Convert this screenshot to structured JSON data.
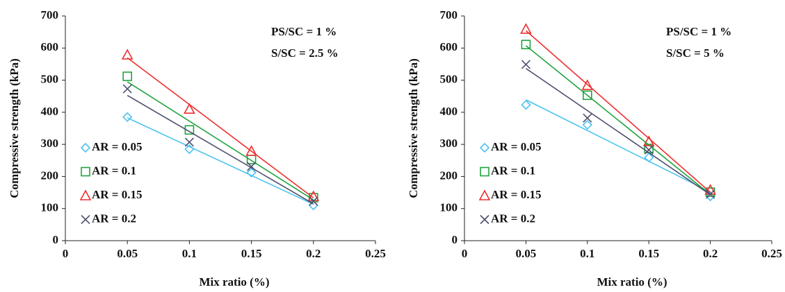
{
  "chart_data": [
    {
      "type": "scatter",
      "xlabel": "Mix ratio (%)",
      "ylabel": "Compressive strength (kPa)",
      "annotations": [
        "PS/SC = 1 %",
        "S/SC = 2.5 %"
      ],
      "x": [
        0.05,
        0.1,
        0.15,
        0.2
      ],
      "series": [
        {
          "name": "AR = 0.05",
          "color": "#4cc3ee",
          "marker": "diamond",
          "values": [
            385,
            285,
            212,
            110
          ]
        },
        {
          "name": "AR = 0.1",
          "color": "#1fa33f",
          "marker": "square",
          "values": [
            512,
            345,
            253,
            134
          ]
        },
        {
          "name": "AR = 0.15",
          "color": "#ee2e2e",
          "marker": "triangle",
          "values": [
            579,
            410,
            279,
            138
          ]
        },
        {
          "name": "AR = 0.2",
          "color": "#4d4f6e",
          "marker": "x",
          "values": [
            473,
            307,
            231,
            123
          ]
        }
      ],
      "xlim": [
        0,
        0.25
      ],
      "xticks": [
        0,
        0.05,
        0.1,
        0.15,
        0.2,
        0.25
      ],
      "ylim": [
        0,
        700
      ],
      "yticks": [
        0,
        100,
        200,
        300,
        400,
        500,
        600,
        700
      ],
      "trendline": "linear"
    },
    {
      "type": "scatter",
      "xlabel": "Mix ratio (%)",
      "ylabel": "Compressive strength (kPa)",
      "annotations": [
        "PS/SC = 1 %",
        "S/SC = 5 %"
      ],
      "x": [
        0.05,
        0.1,
        0.15,
        0.2
      ],
      "series": [
        {
          "name": "AR = 0.05",
          "color": "#4cc3ee",
          "marker": "diamond",
          "values": [
            423,
            361,
            259,
            138
          ]
        },
        {
          "name": "AR = 0.1",
          "color": "#1fa33f",
          "marker": "square",
          "values": [
            611,
            453,
            287,
            151
          ]
        },
        {
          "name": "AR = 0.15",
          "color": "#ee2e2e",
          "marker": "triangle",
          "values": [
            659,
            484,
            309,
            158
          ]
        },
        {
          "name": "AR = 0.2",
          "color": "#4d4f6e",
          "marker": "x",
          "values": [
            549,
            382,
            283,
            145
          ]
        }
      ],
      "xlim": [
        0,
        0.25
      ],
      "xticks": [
        0,
        0.05,
        0.1,
        0.15,
        0.2,
        0.25
      ],
      "ylim": [
        0,
        700
      ],
      "yticks": [
        0,
        100,
        200,
        300,
        400,
        500,
        600,
        700
      ],
      "trendline": "linear"
    }
  ]
}
